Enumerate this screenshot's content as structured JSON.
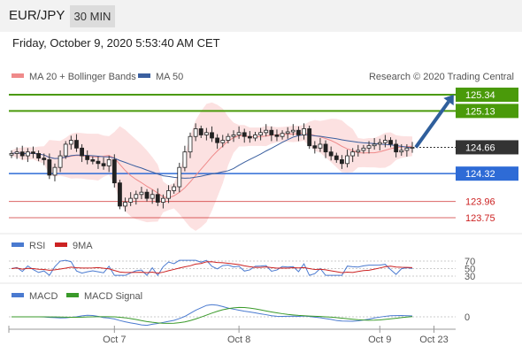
{
  "header": {
    "pair": "EUR/JPY",
    "timeframe": "30 MIN"
  },
  "datetime": "Friday, October 9, 2020 5:53:40 AM CET",
  "chart_data": {
    "type": "candlestick",
    "legend": [
      {
        "name": "MA 20 + Bollinger Bands",
        "color": "#ef8a8a"
      },
      {
        "name": "MA 50",
        "color": "#3a5f9f"
      }
    ],
    "copyright": "Research © 2020 Trading Central",
    "ylim": [
      123.6,
      125.45
    ],
    "current_price": {
      "value": 124.66,
      "label": "124.66",
      "color": "#333333"
    },
    "resistances": [
      {
        "value": 125.34,
        "label": "125.34",
        "color": "#4a9a0a"
      },
      {
        "value": 125.13,
        "label": "125.13",
        "color": "#4a9a0a"
      }
    ],
    "pivot": {
      "value": 124.32,
      "label": "124.32",
      "color": "#2e6bd6"
    },
    "supports": [
      {
        "value": 123.96,
        "label": "123.96",
        "color": "#cc2222"
      },
      {
        "value": 123.75,
        "label": "123.75",
        "color": "#cc2222"
      }
    ],
    "arrow": {
      "from": 124.66,
      "to": 125.34,
      "color": "#2f5f9c"
    },
    "closes": [
      124.58,
      124.6,
      124.55,
      124.6,
      124.58,
      124.52,
      124.5,
      124.3,
      124.4,
      124.55,
      124.7,
      124.75,
      124.65,
      124.55,
      124.5,
      124.48,
      124.45,
      124.42,
      124.5,
      124.2,
      123.9,
      123.95,
      124.0,
      124.05,
      124.08,
      124.0,
      124.05,
      123.95,
      124.0,
      124.1,
      124.15,
      124.4,
      124.6,
      124.8,
      124.9,
      124.82,
      124.85,
      124.78,
      124.72,
      124.75,
      124.8,
      124.82,
      124.85,
      124.8,
      124.78,
      124.82,
      124.85,
      124.88,
      124.82,
      124.8,
      124.84,
      124.86,
      124.88,
      124.82,
      124.9,
      124.68,
      124.65,
      124.7,
      124.6,
      124.55,
      124.5,
      124.45,
      124.55,
      124.6,
      124.62,
      124.65,
      124.68,
      124.7,
      124.72,
      124.75,
      124.7,
      124.6,
      124.62,
      124.65,
      124.66
    ],
    "rsi": {
      "legend": [
        {
          "name": "RSI",
          "color": "#4a7ad0"
        },
        {
          "name": "9MA",
          "color": "#cc2222"
        }
      ],
      "levels": [
        70,
        50,
        30
      ],
      "level_labels": [
        "70",
        "50",
        "30"
      ]
    },
    "macd": {
      "legend": [
        {
          "name": "MACD",
          "color": "#4a7ad0"
        },
        {
          "name": "MACD Signal",
          "color": "#3a9a2a"
        }
      ],
      "zero_label": "0"
    },
    "x_ticks": [
      {
        "label": "Oct 7",
        "index": 19
      },
      {
        "label": "Oct 8",
        "index": 42
      },
      {
        "label": "Oct 9",
        "index": 68
      },
      {
        "label": "Oct 23",
        "index": 78
      }
    ]
  }
}
